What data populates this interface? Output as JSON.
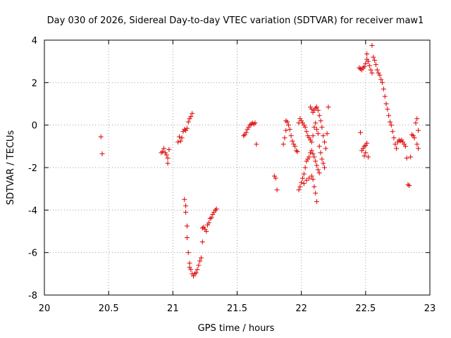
{
  "chart_data": {
    "type": "scatter",
    "title": "Day 030 of 2026, Sidereal Day-to-day VTEC variation (SDTVAR) for receiver maw1",
    "xlabel": "GPS time / hours",
    "ylabel": "SDTVAR / TECUs",
    "xlim": [
      20,
      23
    ],
    "ylim": [
      -8,
      4
    ],
    "xticks": [
      "20",
      "20.5",
      "21",
      "21.5",
      "22",
      "22.5",
      "23"
    ],
    "yticks": [
      "4",
      "2",
      "0",
      "-2",
      "-4",
      "-6",
      "-8"
    ],
    "grid": true,
    "marker": "+",
    "color": "#dd0000",
    "series": [
      {
        "name": "maw1",
        "points": [
          [
            20.44,
            -0.55
          ],
          [
            20.45,
            -1.35
          ],
          [
            20.91,
            -1.3
          ],
          [
            20.92,
            -1.25
          ],
          [
            20.93,
            -1.1
          ],
          [
            20.94,
            -1.3
          ],
          [
            20.95,
            -1.4
          ],
          [
            20.96,
            -1.55
          ],
          [
            20.96,
            -1.8
          ],
          [
            20.97,
            -1.15
          ],
          [
            21.04,
            -0.8
          ],
          [
            21.05,
            -0.55
          ],
          [
            21.06,
            -0.75
          ],
          [
            21.07,
            -0.6
          ],
          [
            21.08,
            -0.3
          ],
          [
            21.09,
            -0.2
          ],
          [
            21.1,
            -0.25
          ],
          [
            21.11,
            -0.15
          ],
          [
            21.12,
            0.15
          ],
          [
            21.13,
            0.3
          ],
          [
            21.14,
            0.4
          ],
          [
            21.15,
            0.55
          ],
          [
            21.09,
            -3.5
          ],
          [
            21.1,
            -3.8
          ],
          [
            21.1,
            -4.1
          ],
          [
            21.11,
            -4.75
          ],
          [
            21.11,
            -5.3
          ],
          [
            21.12,
            -6.0
          ],
          [
            21.13,
            -6.5
          ],
          [
            21.13,
            -6.7
          ],
          [
            21.14,
            -6.8
          ],
          [
            21.15,
            -7.0
          ],
          [
            21.16,
            -7.1
          ],
          [
            21.17,
            -7.0
          ],
          [
            21.18,
            -6.95
          ],
          [
            21.19,
            -6.8
          ],
          [
            21.2,
            -6.6
          ],
          [
            21.21,
            -6.4
          ],
          [
            21.22,
            -6.25
          ],
          [
            21.23,
            -5.5
          ],
          [
            21.23,
            -4.85
          ],
          [
            21.24,
            -4.8
          ],
          [
            21.25,
            -4.9
          ],
          [
            21.26,
            -5.0
          ],
          [
            21.27,
            -4.7
          ],
          [
            21.28,
            -4.6
          ],
          [
            21.29,
            -4.4
          ],
          [
            21.3,
            -4.35
          ],
          [
            21.31,
            -4.2
          ],
          [
            21.32,
            -4.1
          ],
          [
            21.33,
            -4.0
          ],
          [
            21.34,
            -3.95
          ],
          [
            21.55,
            -0.5
          ],
          [
            21.56,
            -0.45
          ],
          [
            21.57,
            -0.35
          ],
          [
            21.58,
            -0.2
          ],
          [
            21.59,
            -0.1
          ],
          [
            21.6,
            0.0
          ],
          [
            21.61,
            0.05
          ],
          [
            21.62,
            0.1
          ],
          [
            21.63,
            0.05
          ],
          [
            21.64,
            0.1
          ],
          [
            21.65,
            -0.9
          ],
          [
            21.79,
            -2.4
          ],
          [
            21.8,
            -2.5
          ],
          [
            21.81,
            -3.05
          ],
          [
            21.86,
            -0.9
          ],
          [
            21.87,
            -0.6
          ],
          [
            21.88,
            -0.25
          ],
          [
            21.88,
            0.2
          ],
          [
            21.89,
            0.15
          ],
          [
            21.9,
            0.0
          ],
          [
            21.91,
            -0.2
          ],
          [
            21.92,
            -0.5
          ],
          [
            21.93,
            -0.75
          ],
          [
            21.94,
            -0.9
          ],
          [
            21.95,
            -1.0
          ],
          [
            21.96,
            -1.2
          ],
          [
            21.97,
            -1.25
          ],
          [
            21.98,
            0.1
          ],
          [
            21.99,
            0.3
          ],
          [
            22.0,
            0.2
          ],
          [
            22.01,
            0.1
          ],
          [
            22.02,
            0.0
          ],
          [
            22.03,
            -0.1
          ],
          [
            22.04,
            -0.3
          ],
          [
            22.05,
            -0.5
          ],
          [
            22.06,
            -0.6
          ],
          [
            22.07,
            -0.7
          ],
          [
            22.08,
            -0.8
          ],
          [
            22.09,
            -0.5
          ],
          [
            22.1,
            -0.1
          ],
          [
            22.11,
            0.1
          ],
          [
            22.12,
            -0.2
          ],
          [
            22.13,
            -0.4
          ],
          [
            21.98,
            -3.05
          ],
          [
            21.99,
            -2.9
          ],
          [
            22.0,
            -2.7
          ],
          [
            22.01,
            -2.5
          ],
          [
            22.02,
            -2.3
          ],
          [
            22.03,
            -2.0
          ],
          [
            22.04,
            -1.7
          ],
          [
            22.05,
            -1.6
          ],
          [
            22.06,
            -1.5
          ],
          [
            22.07,
            -1.3
          ],
          [
            22.08,
            -1.2
          ],
          [
            22.09,
            -1.35
          ],
          [
            22.1,
            -1.5
          ],
          [
            22.11,
            -1.7
          ],
          [
            22.12,
            -1.9
          ],
          [
            22.13,
            -2.1
          ],
          [
            22.14,
            -2.25
          ],
          [
            22.02,
            -2.75
          ],
          [
            22.04,
            -2.6
          ],
          [
            22.06,
            -2.5
          ],
          [
            22.08,
            -2.4
          ],
          [
            22.09,
            -2.55
          ],
          [
            22.1,
            -2.9
          ],
          [
            22.11,
            -3.2
          ],
          [
            22.12,
            -3.6
          ],
          [
            22.07,
            0.85
          ],
          [
            22.08,
            0.75
          ],
          [
            22.09,
            0.6
          ],
          [
            22.1,
            0.7
          ],
          [
            22.11,
            0.8
          ],
          [
            22.12,
            0.85
          ],
          [
            22.13,
            0.7
          ],
          [
            22.14,
            0.45
          ],
          [
            22.15,
            0.2
          ],
          [
            22.16,
            -0.1
          ],
          [
            22.17,
            -0.5
          ],
          [
            22.18,
            -0.8
          ],
          [
            22.19,
            -1.1
          ],
          [
            22.2,
            -0.4
          ],
          [
            22.21,
            0.85
          ],
          [
            22.14,
            -1.0
          ],
          [
            22.15,
            -1.3
          ],
          [
            22.16,
            -1.6
          ],
          [
            22.17,
            -1.8
          ],
          [
            22.18,
            -2.0
          ],
          [
            22.45,
            2.7
          ],
          [
            22.46,
            2.65
          ],
          [
            22.47,
            2.6
          ],
          [
            22.48,
            2.7
          ],
          [
            22.49,
            2.75
          ],
          [
            22.5,
            2.9
          ],
          [
            22.51,
            3.1
          ],
          [
            22.51,
            3.35
          ],
          [
            22.52,
            3.0
          ],
          [
            22.53,
            2.8
          ],
          [
            22.54,
            2.6
          ],
          [
            22.55,
            2.45
          ],
          [
            22.55,
            3.75
          ],
          [
            22.56,
            3.2
          ],
          [
            22.57,
            3.05
          ],
          [
            22.58,
            2.85
          ],
          [
            22.59,
            2.6
          ],
          [
            22.6,
            2.45
          ],
          [
            22.61,
            2.35
          ],
          [
            22.62,
            2.15
          ],
          [
            22.63,
            2.0
          ],
          [
            22.64,
            1.7
          ],
          [
            22.65,
            1.35
          ],
          [
            22.66,
            1.0
          ],
          [
            22.67,
            0.75
          ],
          [
            22.68,
            0.45
          ],
          [
            22.69,
            0.15
          ],
          [
            22.7,
            0.0
          ],
          [
            22.71,
            -0.3
          ],
          [
            22.72,
            -0.6
          ],
          [
            22.73,
            -0.9
          ],
          [
            22.74,
            -1.1
          ],
          [
            22.75,
            -0.8
          ],
          [
            22.76,
            -0.7
          ],
          [
            22.77,
            -0.75
          ],
          [
            22.78,
            -0.7
          ],
          [
            22.79,
            -0.8
          ],
          [
            22.8,
            -0.9
          ],
          [
            22.81,
            -1.0
          ],
          [
            22.46,
            -0.35
          ],
          [
            22.47,
            -1.2
          ],
          [
            22.48,
            -1.1
          ],
          [
            22.49,
            -1.0
          ],
          [
            22.5,
            -0.95
          ],
          [
            22.51,
            -0.85
          ],
          [
            22.52,
            -1.5
          ],
          [
            22.5,
            -1.3
          ],
          [
            22.49,
            -1.45
          ],
          [
            22.82,
            -1.55
          ],
          [
            22.83,
            -2.8
          ],
          [
            22.84,
            -2.85
          ],
          [
            22.85,
            -1.5
          ],
          [
            22.86,
            -0.45
          ],
          [
            22.87,
            -0.5
          ],
          [
            22.88,
            -0.6
          ],
          [
            22.89,
            0.1
          ],
          [
            22.9,
            0.3
          ],
          [
            22.91,
            -1.1
          ],
          [
            22.91,
            -0.25
          ],
          [
            22.9,
            -0.9
          ]
        ]
      }
    ]
  }
}
